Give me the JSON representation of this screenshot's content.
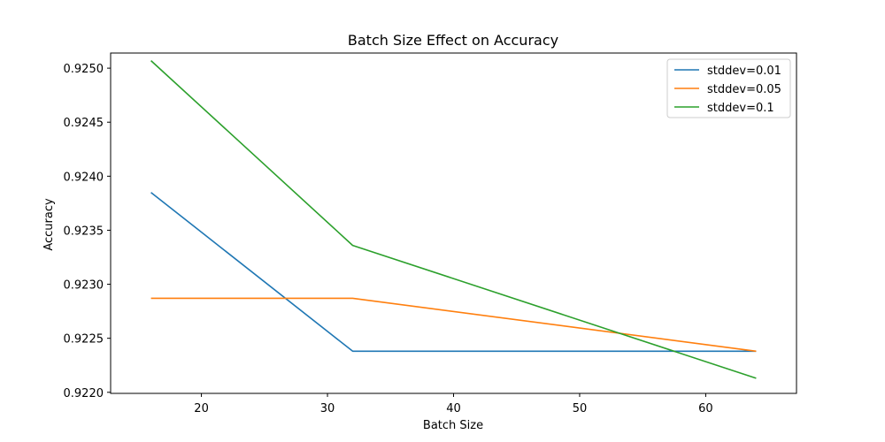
{
  "chart_data": {
    "type": "line",
    "title": "Batch Size Effect on Accuracy",
    "xlabel": "Batch Size",
    "ylabel": "Accuracy",
    "x": [
      16,
      32,
      64
    ],
    "xlim": [
      12.8,
      67.2
    ],
    "ylim": [
      0.92199,
      0.92514
    ],
    "xticks": [
      20,
      30,
      40,
      50,
      60
    ],
    "yticks": [
      0.922,
      0.9225,
      0.923,
      0.9235,
      0.924,
      0.9245,
      0.925
    ],
    "xtick_labels": [
      "20",
      "30",
      "40",
      "50",
      "60"
    ],
    "ytick_labels": [
      "0.9220",
      "0.9225",
      "0.9230",
      "0.9235",
      "0.9240",
      "0.9245",
      "0.9250"
    ],
    "grid": false,
    "legend_position": "top-right",
    "series": [
      {
        "name": "stddev=0.01",
        "color": "#1f77b4",
        "values": [
          0.92385,
          0.92238,
          0.92238
        ]
      },
      {
        "name": "stddev=0.05",
        "color": "#ff7f0e",
        "values": [
          0.92287,
          0.92287,
          0.92238
        ]
      },
      {
        "name": "stddev=0.1",
        "color": "#2ca02c",
        "values": [
          0.92507,
          0.92336,
          0.92213
        ]
      }
    ]
  }
}
